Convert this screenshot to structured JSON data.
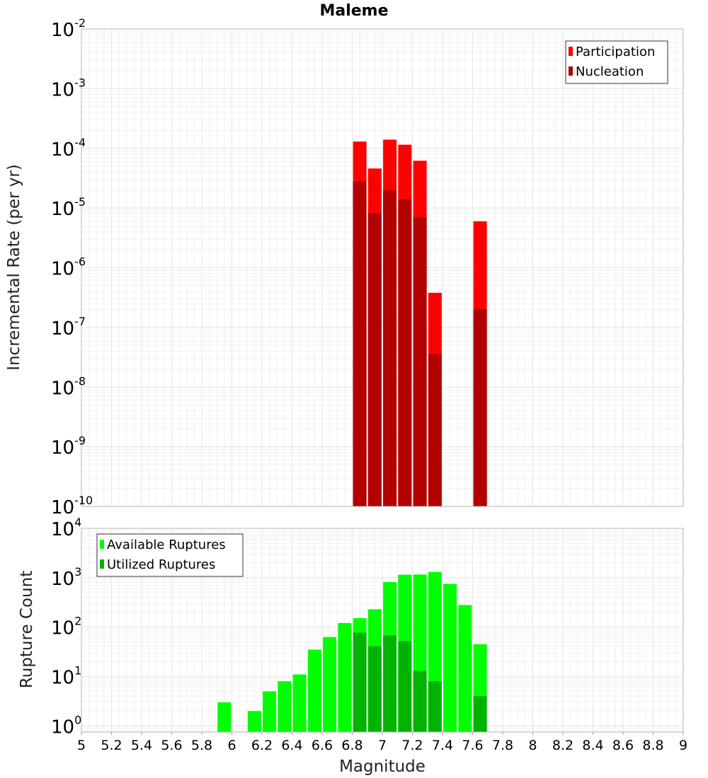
{
  "chart_data": [
    {
      "type": "bar",
      "title": "Maleme",
      "xlabel": "",
      "ylabel": "Incremental Rate (per yr)",
      "yscale": "log",
      "ylim": [
        1e-10,
        0.01
      ],
      "xlim": [
        5,
        9
      ],
      "grid": true,
      "legend_position": "top-right",
      "x": [
        6.85,
        6.95,
        7.05,
        7.15,
        7.25,
        7.35,
        7.65
      ],
      "series": [
        {
          "name": "Participation",
          "color": "#ff0000",
          "values": [
            0.00013,
            4.6e-05,
            0.00014,
            0.000115,
            6.2e-05,
            3.8e-07,
            6e-06
          ]
        },
        {
          "name": "Nucleation",
          "color": "#b30000",
          "values": [
            2.8e-05,
            8.3e-06,
            2e-05,
            1.4e-05,
            7e-06,
            3.6e-08,
            2e-07
          ]
        }
      ],
      "ytick_labels": [
        {
          "base": "10",
          "exp": "-10",
          "value": 1e-10
        },
        {
          "base": "10",
          "exp": "-9",
          "value": 1e-09
        },
        {
          "base": "10",
          "exp": "-8",
          "value": 1e-08
        },
        {
          "base": "10",
          "exp": "-7",
          "value": 1e-07
        },
        {
          "base": "10",
          "exp": "-6",
          "value": 1e-06
        },
        {
          "base": "10",
          "exp": "-5",
          "value": 1e-05
        },
        {
          "base": "10",
          "exp": "-4",
          "value": 0.0001
        },
        {
          "base": "10",
          "exp": "-3",
          "value": 0.001
        },
        {
          "base": "10",
          "exp": "-2",
          "value": 0.01
        }
      ]
    },
    {
      "type": "bar",
      "title": "",
      "xlabel": "Magnitude",
      "ylabel": "Rupture Count",
      "yscale": "log",
      "ylim": [
        0.75,
        10000.0
      ],
      "xlim": [
        5,
        9
      ],
      "grid": true,
      "legend_position": "top-left",
      "x": [
        5.95,
        6.15,
        6.25,
        6.35,
        6.45,
        6.55,
        6.65,
        6.75,
        6.85,
        6.95,
        7.05,
        7.15,
        7.25,
        7.35,
        7.45,
        7.55,
        7.65
      ],
      "series": [
        {
          "name": "Available Ruptures",
          "color": "#00ff00",
          "values": [
            3,
            2,
            5,
            8,
            11,
            35,
            63,
            121,
            152,
            230,
            820,
            1150,
            1160,
            1310,
            750,
            280,
            45
          ]
        },
        {
          "name": "Utilized Ruptures",
          "color": "#00b300",
          "values": [
            null,
            null,
            null,
            null,
            null,
            null,
            null,
            null,
            77,
            41,
            68,
            52,
            13,
            8,
            null,
            null,
            4
          ]
        }
      ],
      "ytick_labels": [
        {
          "base": "10",
          "exp": "0",
          "value": 1
        },
        {
          "base": "10",
          "exp": "1",
          "value": 10
        },
        {
          "base": "10",
          "exp": "2",
          "value": 100
        },
        {
          "base": "10",
          "exp": "3",
          "value": 1000
        },
        {
          "base": "10",
          "exp": "4",
          "value": 10000
        }
      ],
      "xtick_labels": [
        "5",
        "5.2",
        "5.4",
        "5.6",
        "5.8",
        "6",
        "6.2",
        "6.4",
        "6.6",
        "6.8",
        "7",
        "7.2",
        "7.4",
        "7.6",
        "7.8",
        "8",
        "8.2",
        "8.4",
        "8.6",
        "8.8",
        "9"
      ]
    }
  ]
}
